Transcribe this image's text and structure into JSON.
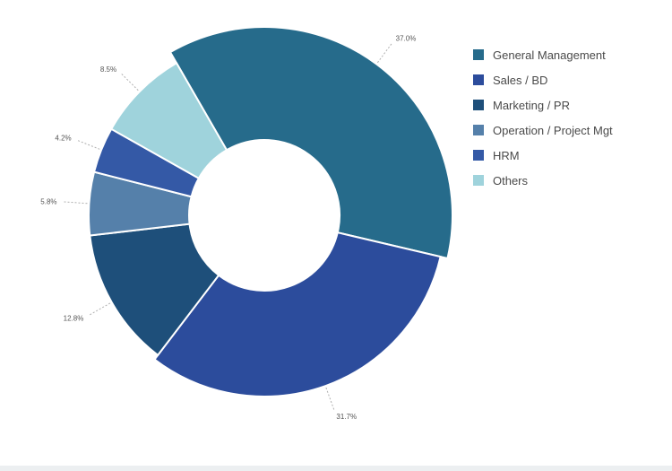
{
  "chart_data": {
    "type": "pie",
    "variant": "donut",
    "title": "",
    "start_angle_deg": 330,
    "slices": [
      {
        "name": "General Management",
        "value": 37.0,
        "label": "37.0%",
        "color": "#266b8b"
      },
      {
        "name": "Sales / BD",
        "value": 31.7,
        "label": "31.7%",
        "color": "#2c4c9c"
      },
      {
        "name": "Marketing / PR",
        "value": 12.8,
        "label": "12.8%",
        "color": "#1e4f7a"
      },
      {
        "name": "Operation / Project Mgt",
        "value": 5.8,
        "label": "5.8%",
        "color": "#5580aa"
      },
      {
        "name": "HRM",
        "value": 4.2,
        "label": "4.2%",
        "color": "#3459a6"
      },
      {
        "name": "Others",
        "value": 8.5,
        "label": "8.5%",
        "color": "#9fd3dc"
      }
    ],
    "legend_position": "right"
  }
}
